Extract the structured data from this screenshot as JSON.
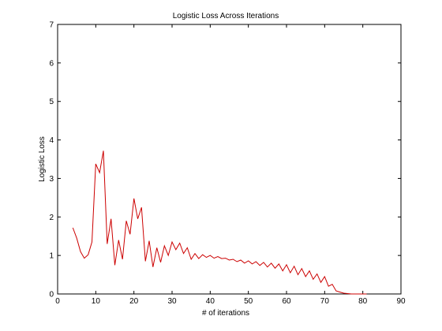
{
  "chart_data": {
    "type": "line",
    "title": "Logistic Loss Across Iterations",
    "xlabel": "# of iterations",
    "ylabel": "Logistic Loss",
    "xlim": [
      0,
      90
    ],
    "ylim": [
      0,
      7
    ],
    "xticks": [
      "0",
      "10",
      "20",
      "30",
      "40",
      "50",
      "60",
      "70",
      "80",
      "90"
    ],
    "yticks": [
      "0",
      "1",
      "2",
      "3",
      "4",
      "5",
      "6",
      "7"
    ],
    "grid": false,
    "line_color": "#cc0000",
    "series": [
      {
        "x": [
          4,
          5,
          6,
          7,
          8,
          9,
          10,
          11,
          12,
          13,
          14,
          15,
          16,
          17,
          18,
          19,
          20,
          21,
          22,
          23,
          24,
          25,
          26,
          27,
          28,
          29,
          30,
          31,
          32,
          33,
          34,
          35,
          36,
          37,
          38,
          39,
          40,
          41,
          42,
          43,
          44,
          45,
          46,
          47,
          48,
          49,
          50,
          51,
          52,
          53,
          54,
          55,
          56,
          57,
          58,
          59,
          60,
          61,
          62,
          63,
          64,
          65,
          66,
          67,
          68,
          69,
          70,
          71,
          72,
          73,
          74,
          75,
          76,
          77,
          78,
          79,
          80,
          81
        ],
        "y": [
          1.72,
          1.45,
          1.1,
          0.93,
          1.02,
          1.35,
          3.38,
          3.15,
          3.72,
          1.3,
          1.95,
          0.75,
          1.4,
          0.9,
          1.9,
          1.55,
          2.48,
          1.95,
          2.25,
          0.85,
          1.38,
          0.7,
          1.2,
          0.82,
          1.25,
          1.0,
          1.35,
          1.15,
          1.32,
          1.05,
          1.2,
          0.9,
          1.05,
          0.92,
          1.02,
          0.95,
          1.0,
          0.93,
          0.97,
          0.92,
          0.93,
          0.88,
          0.9,
          0.84,
          0.88,
          0.8,
          0.86,
          0.78,
          0.84,
          0.74,
          0.82,
          0.7,
          0.8,
          0.67,
          0.78,
          0.6,
          0.76,
          0.55,
          0.72,
          0.5,
          0.66,
          0.45,
          0.6,
          0.38,
          0.52,
          0.3,
          0.45,
          0.2,
          0.25,
          0.08,
          0.05,
          0.02,
          0.01,
          0.0,
          0.0,
          0.0,
          0.0,
          0.0
        ]
      }
    ]
  }
}
